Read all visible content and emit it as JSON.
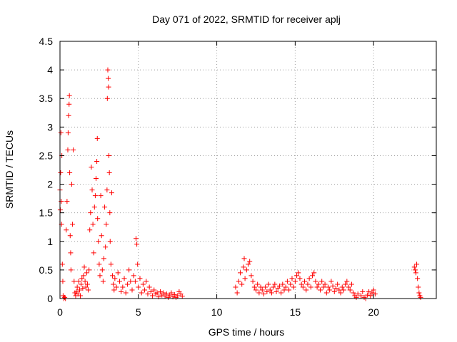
{
  "chart_data": {
    "type": "scatter",
    "title": "Day 071 of 2022, SRMTID for receiver aplj",
    "xlabel": "GPS time / hours",
    "ylabel": "SRMTID / TECUs",
    "xlim": [
      0,
      24
    ],
    "ylim": [
      0,
      4.5
    ],
    "x_ticks": [
      0,
      5,
      10,
      15,
      20
    ],
    "x_tick_labels": [
      "0",
      "5",
      "10",
      "15",
      "20"
    ],
    "y_ticks": [
      0,
      0.5,
      1,
      1.5,
      2,
      2.5,
      3,
      3.5,
      4,
      4.5
    ],
    "y_tick_labels": [
      "0",
      "0.5",
      "1",
      "1.5",
      "2",
      "2.5",
      "3",
      "3.5",
      "4",
      "4.5"
    ],
    "grid": true,
    "marker": "+",
    "marker_color": "#ff0000",
    "series": [
      {
        "name": "SRMTID",
        "points": [
          [
            0.0,
            1.9
          ],
          [
            0.02,
            1.55
          ],
          [
            0.04,
            2.2
          ],
          [
            0.06,
            2.9
          ],
          [
            0.08,
            1.7
          ],
          [
            0.1,
            1.3
          ],
          [
            0.12,
            2.5
          ],
          [
            0.15,
            0.6
          ],
          [
            0.18,
            0.3
          ],
          [
            0.2,
            0.05
          ],
          [
            0.25,
            0.0
          ],
          [
            0.3,
            0.02
          ],
          [
            0.35,
            0.0
          ],
          [
            0.4,
            1.2
          ],
          [
            0.45,
            1.7
          ],
          [
            0.5,
            2.6
          ],
          [
            0.52,
            2.9
          ],
          [
            0.55,
            3.2
          ],
          [
            0.58,
            3.4
          ],
          [
            0.6,
            3.55
          ],
          [
            0.62,
            2.2
          ],
          [
            0.65,
            1.1
          ],
          [
            0.68,
            0.8
          ],
          [
            0.7,
            0.5
          ],
          [
            0.75,
            2.0
          ],
          [
            0.8,
            1.3
          ],
          [
            0.85,
            2.6
          ],
          [
            0.9,
            0.3
          ],
          [
            0.95,
            0.1
          ],
          [
            1.0,
            0.05
          ],
          [
            1.05,
            0.12
          ],
          [
            1.1,
            0.2
          ],
          [
            1.15,
            0.08
          ],
          [
            1.2,
            0.3
          ],
          [
            1.25,
            0.15
          ],
          [
            1.3,
            0.05
          ],
          [
            1.35,
            0.25
          ],
          [
            1.4,
            0.35
          ],
          [
            1.45,
            0.18
          ],
          [
            1.5,
            0.4
          ],
          [
            1.55,
            0.55
          ],
          [
            1.6,
            0.3
          ],
          [
            1.65,
            0.2
          ],
          [
            1.7,
            0.45
          ],
          [
            1.75,
            0.25
          ],
          [
            1.8,
            0.15
          ],
          [
            1.85,
            0.5
          ],
          [
            1.9,
            1.2
          ],
          [
            1.95,
            1.5
          ],
          [
            2.0,
            2.3
          ],
          [
            2.05,
            1.9
          ],
          [
            2.1,
            1.3
          ],
          [
            2.15,
            0.8
          ],
          [
            2.2,
            1.6
          ],
          [
            2.25,
            1.8
          ],
          [
            2.3,
            2.1
          ],
          [
            2.35,
            2.4
          ],
          [
            2.38,
            2.8
          ],
          [
            2.4,
            1.4
          ],
          [
            2.45,
            1.0
          ],
          [
            2.5,
            0.6
          ],
          [
            2.55,
            0.4
          ],
          [
            2.6,
            1.8
          ],
          [
            2.65,
            1.1
          ],
          [
            2.7,
            0.5
          ],
          [
            2.75,
            0.3
          ],
          [
            2.8,
            0.7
          ],
          [
            2.85,
            1.6
          ],
          [
            2.9,
            0.9
          ],
          [
            2.95,
            1.3
          ],
          [
            3.0,
            1.9
          ],
          [
            3.02,
            3.5
          ],
          [
            3.05,
            4.0
          ],
          [
            3.08,
            3.85
          ],
          [
            3.1,
            3.7
          ],
          [
            3.12,
            2.5
          ],
          [
            3.15,
            2.2
          ],
          [
            3.18,
            1.5
          ],
          [
            3.2,
            1.0
          ],
          [
            3.25,
            0.6
          ],
          [
            3.3,
            1.85
          ],
          [
            3.35,
            0.4
          ],
          [
            3.4,
            0.25
          ],
          [
            3.45,
            0.15
          ],
          [
            3.5,
            0.35
          ],
          [
            3.6,
            0.2
          ],
          [
            3.7,
            0.45
          ],
          [
            3.8,
            0.3
          ],
          [
            3.9,
            0.12
          ],
          [
            4.0,
            0.2
          ],
          [
            4.1,
            0.35
          ],
          [
            4.2,
            0.1
          ],
          [
            4.3,
            0.25
          ],
          [
            4.4,
            0.5
          ],
          [
            4.5,
            0.3
          ],
          [
            4.6,
            0.15
          ],
          [
            4.7,
            0.4
          ],
          [
            4.8,
            0.3
          ],
          [
            4.85,
            1.05
          ],
          [
            4.9,
            0.95
          ],
          [
            4.95,
            0.6
          ],
          [
            5.0,
            0.2
          ],
          [
            5.1,
            0.35
          ],
          [
            5.2,
            0.1
          ],
          [
            5.3,
            0.25
          ],
          [
            5.4,
            0.15
          ],
          [
            5.5,
            0.3
          ],
          [
            5.6,
            0.08
          ],
          [
            5.7,
            0.2
          ],
          [
            5.8,
            0.12
          ],
          [
            5.9,
            0.05
          ],
          [
            6.0,
            0.15
          ],
          [
            6.1,
            0.08
          ],
          [
            6.2,
            0.1
          ],
          [
            6.3,
            0.03
          ],
          [
            6.4,
            0.12
          ],
          [
            6.5,
            0.06
          ],
          [
            6.6,
            0.1
          ],
          [
            6.7,
            0.04
          ],
          [
            6.8,
            0.08
          ],
          [
            6.9,
            0.02
          ],
          [
            7.0,
            0.06
          ],
          [
            7.1,
            0.1
          ],
          [
            7.2,
            0.03
          ],
          [
            7.3,
            0.07
          ],
          [
            7.4,
            0.02
          ],
          [
            7.5,
            0.05
          ],
          [
            7.6,
            0.12
          ],
          [
            7.7,
            0.08
          ],
          [
            7.8,
            0.04
          ],
          [
            11.2,
            0.2
          ],
          [
            11.3,
            0.1
          ],
          [
            11.4,
            0.3
          ],
          [
            11.5,
            0.45
          ],
          [
            11.6,
            0.25
          ],
          [
            11.7,
            0.55
          ],
          [
            11.75,
            0.7
          ],
          [
            11.8,
            0.35
          ],
          [
            11.9,
            0.5
          ],
          [
            12.0,
            0.6
          ],
          [
            12.1,
            0.65
          ],
          [
            12.2,
            0.4
          ],
          [
            12.3,
            0.3
          ],
          [
            12.4,
            0.2
          ],
          [
            12.5,
            0.15
          ],
          [
            12.6,
            0.25
          ],
          [
            12.7,
            0.1
          ],
          [
            12.8,
            0.2
          ],
          [
            12.9,
            0.15
          ],
          [
            13.0,
            0.08
          ],
          [
            13.1,
            0.2
          ],
          [
            13.2,
            0.12
          ],
          [
            13.3,
            0.25
          ],
          [
            13.4,
            0.15
          ],
          [
            13.5,
            0.1
          ],
          [
            13.6,
            0.2
          ],
          [
            13.7,
            0.25
          ],
          [
            13.8,
            0.12
          ],
          [
            13.9,
            0.18
          ],
          [
            14.0,
            0.22
          ],
          [
            14.1,
            0.1
          ],
          [
            14.2,
            0.25
          ],
          [
            14.3,
            0.15
          ],
          [
            14.4,
            0.2
          ],
          [
            14.5,
            0.3
          ],
          [
            14.6,
            0.15
          ],
          [
            14.7,
            0.25
          ],
          [
            14.8,
            0.35
          ],
          [
            14.9,
            0.2
          ],
          [
            15.0,
            0.3
          ],
          [
            15.1,
            0.4
          ],
          [
            15.2,
            0.45
          ],
          [
            15.3,
            0.35
          ],
          [
            15.4,
            0.25
          ],
          [
            15.5,
            0.2
          ],
          [
            15.6,
            0.3
          ],
          [
            15.7,
            0.15
          ],
          [
            15.8,
            0.25
          ],
          [
            15.9,
            0.35
          ],
          [
            16.0,
            0.2
          ],
          [
            16.1,
            0.4
          ],
          [
            16.2,
            0.45
          ],
          [
            16.3,
            0.3
          ],
          [
            16.4,
            0.2
          ],
          [
            16.5,
            0.25
          ],
          [
            16.6,
            0.15
          ],
          [
            16.7,
            0.3
          ],
          [
            16.8,
            0.2
          ],
          [
            16.9,
            0.25
          ],
          [
            17.0,
            0.1
          ],
          [
            17.1,
            0.2
          ],
          [
            17.2,
            0.15
          ],
          [
            17.3,
            0.3
          ],
          [
            17.4,
            0.22
          ],
          [
            17.5,
            0.12
          ],
          [
            17.6,
            0.18
          ],
          [
            17.7,
            0.25
          ],
          [
            17.8,
            0.15
          ],
          [
            17.9,
            0.1
          ],
          [
            18.0,
            0.2
          ],
          [
            18.1,
            0.15
          ],
          [
            18.2,
            0.25
          ],
          [
            18.3,
            0.3
          ],
          [
            18.4,
            0.2
          ],
          [
            18.5,
            0.15
          ],
          [
            18.6,
            0.25
          ],
          [
            18.7,
            0.1
          ],
          [
            18.8,
            0.05
          ],
          [
            18.9,
            0.02
          ],
          [
            19.0,
            0.08
          ],
          [
            19.2,
            0.05
          ],
          [
            19.3,
            0.12
          ],
          [
            19.4,
            0.02
          ],
          [
            19.5,
            0.0
          ],
          [
            19.6,
            0.06
          ],
          [
            19.7,
            0.12
          ],
          [
            19.8,
            0.05
          ],
          [
            19.9,
            0.1
          ],
          [
            20.0,
            0.15
          ],
          [
            20.1,
            0.08
          ],
          [
            22.6,
            0.55
          ],
          [
            22.65,
            0.5
          ],
          [
            22.7,
            0.45
          ],
          [
            22.75,
            0.6
          ],
          [
            22.8,
            0.35
          ],
          [
            22.85,
            0.2
          ],
          [
            22.9,
            0.1
          ],
          [
            22.95,
            0.05
          ],
          [
            23.0,
            0.02
          ]
        ]
      }
    ]
  }
}
